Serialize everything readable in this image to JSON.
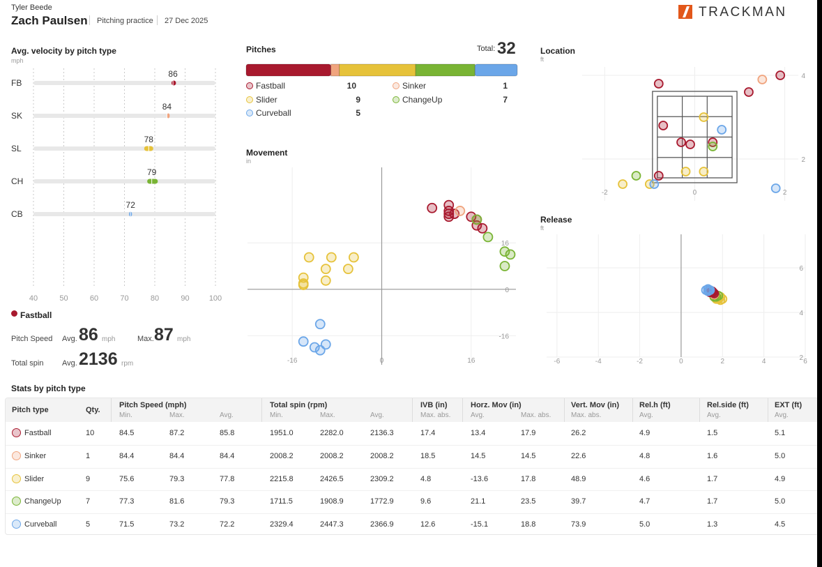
{
  "header": {
    "coach": "Tyler Beede",
    "player": "Zach Paulsen",
    "session": "Pitching practice",
    "date": "27 Dec 2025",
    "logo_text": "TRACKMAN"
  },
  "colors": {
    "fastball": "#a8192e",
    "sinker": "#f0a47e",
    "slider": "#e6c23a",
    "changeup": "#79b434",
    "curveball": "#6ba6e8"
  },
  "velocity_panel": {
    "title": "Avg. velocity by pitch type",
    "unit": "mph",
    "selected_pitch": "Fastball",
    "pitch_speed_label": "Pitch Speed",
    "avg_label": "Avg.",
    "max_label": "Max.",
    "speed_avg": "86",
    "speed_max": "87",
    "speed_unit": "mph",
    "total_spin_label": "Total spin",
    "spin_avg": "2136",
    "spin_unit": "rpm"
  },
  "pitches_panel": {
    "title": "Pitches",
    "total_label": "Total:",
    "total": "32",
    "legend": [
      {
        "name": "Fastball",
        "count": "10",
        "key": "fastball"
      },
      {
        "name": "Sinker",
        "count": "1",
        "key": "sinker"
      },
      {
        "name": "Slider",
        "count": "9",
        "key": "slider"
      },
      {
        "name": "ChangeUp",
        "count": "7",
        "key": "changeup"
      },
      {
        "name": "Curveball",
        "count": "5",
        "key": "curveball"
      }
    ]
  },
  "movement_panel": {
    "title": "Movement",
    "unit": "in"
  },
  "location_panel": {
    "title": "Location",
    "unit": "ft"
  },
  "release_panel": {
    "title": "Release",
    "unit": "ft"
  },
  "stats": {
    "title": "Stats by pitch type",
    "headers": {
      "pitch_type": "Pitch type",
      "qty": "Qty.",
      "speed": "Pitch Speed (mph)",
      "spin": "Total spin (rpm)",
      "ivb": "IVB (in)",
      "horz": "Horz. Mov (in)",
      "vert": "Vert. Mov (in)",
      "relh": "Rel.h (ft)",
      "relside": "Rel.side (ft)",
      "ext": "EXT (ft)"
    },
    "subheaders": {
      "min": "Min.",
      "max": "Max.",
      "avg": "Avg.",
      "max_abs": "Max. abs."
    },
    "rows": [
      {
        "name": "Fastball",
        "key": "fastball",
        "qty": "10",
        "s_min": "84.5",
        "s_max": "87.2",
        "s_avg": "85.8",
        "sp_min": "1951.0",
        "sp_max": "2282.0",
        "sp_avg": "2136.3",
        "ivb": "17.4",
        "h_avg": "13.4",
        "h_max": "17.9",
        "v_max": "26.2",
        "relh": "4.9",
        "relside": "1.5",
        "ext": "5.1"
      },
      {
        "name": "Sinker",
        "key": "sinker",
        "qty": "1",
        "s_min": "84.4",
        "s_max": "84.4",
        "s_avg": "84.4",
        "sp_min": "2008.2",
        "sp_max": "2008.2",
        "sp_avg": "2008.2",
        "ivb": "18.5",
        "h_avg": "14.5",
        "h_max": "14.5",
        "v_max": "22.6",
        "relh": "4.8",
        "relside": "1.6",
        "ext": "5.0"
      },
      {
        "name": "Slider",
        "key": "slider",
        "qty": "9",
        "s_min": "75.6",
        "s_max": "79.3",
        "s_avg": "77.8",
        "sp_min": "2215.8",
        "sp_max": "2426.5",
        "sp_avg": "2309.2",
        "ivb": "4.8",
        "h_avg": "-13.6",
        "h_max": "17.8",
        "v_max": "48.9",
        "relh": "4.6",
        "relside": "1.7",
        "ext": "4.9"
      },
      {
        "name": "ChangeUp",
        "key": "changeup",
        "qty": "7",
        "s_min": "77.3",
        "s_max": "81.6",
        "s_avg": "79.3",
        "sp_min": "1711.5",
        "sp_max": "1908.9",
        "sp_avg": "1772.9",
        "ivb": "9.6",
        "h_avg": "21.1",
        "h_max": "23.5",
        "v_max": "39.7",
        "relh": "4.7",
        "relside": "1.7",
        "ext": "5.0"
      },
      {
        "name": "Curveball",
        "key": "curveball",
        "qty": "5",
        "s_min": "71.5",
        "s_max": "73.2",
        "s_avg": "72.2",
        "sp_min": "2329.4",
        "sp_max": "2447.3",
        "sp_avg": "2366.9",
        "ivb": "12.6",
        "h_avg": "-15.1",
        "h_max": "18.8",
        "v_max": "73.9",
        "relh": "5.0",
        "relside": "1.3",
        "ext": "4.5"
      }
    ]
  },
  "chart_data": [
    {
      "id": "velocity",
      "type": "bar",
      "title": "Avg. velocity by pitch type",
      "ylabel": "mph",
      "categories": [
        "FB",
        "SK",
        "SL",
        "CH",
        "CB"
      ],
      "keys": [
        "fastball",
        "sinker",
        "slider",
        "changeup",
        "curveball"
      ],
      "values": [
        86,
        84,
        78,
        79,
        72
      ],
      "ranges": [
        [
          85.5,
          87
        ],
        [
          84,
          84.5
        ],
        [
          76.5,
          79.5
        ],
        [
          77.5,
          81
        ],
        [
          71.5,
          72.5
        ]
      ],
      "xlim": [
        40,
        100
      ],
      "xticks": [
        40,
        50,
        60,
        70,
        80,
        90,
        100
      ]
    },
    {
      "id": "pitches",
      "type": "bar",
      "title": "Pitches",
      "categories": [
        "Fastball",
        "Sinker",
        "Slider",
        "ChangeUp",
        "Curveball"
      ],
      "values": [
        10,
        1,
        9,
        7,
        5
      ]
    },
    {
      "id": "movement",
      "type": "scatter",
      "title": "Movement",
      "xlabel": "in",
      "ylabel": "in",
      "xlim": [
        -24,
        24
      ],
      "ylim": [
        -26,
        42
      ],
      "xticks": [
        -16,
        0,
        16
      ],
      "yticks": [
        -16,
        0,
        16
      ],
      "series": [
        {
          "name": "Fastball",
          "key": "fastball",
          "points": [
            [
              12,
              29
            ],
            [
              12,
              27
            ],
            [
              9,
              28
            ],
            [
              12,
              26
            ],
            [
              13,
              26
            ],
            [
              12,
              25
            ],
            [
              16,
              25
            ],
            [
              17,
              24
            ],
            [
              17,
              22
            ],
            [
              18,
              21
            ]
          ]
        },
        {
          "name": "Sinker",
          "key": "sinker",
          "points": [
            [
              14,
              27
            ]
          ]
        },
        {
          "name": "Slider",
          "key": "slider",
          "points": [
            [
              -13,
              11
            ],
            [
              -9,
              11
            ],
            [
              -5,
              11
            ],
            [
              -10,
              7
            ],
            [
              -6,
              7
            ],
            [
              -14,
              4
            ],
            [
              -14,
              2
            ],
            [
              -14,
              1.5
            ],
            [
              -10,
              3
            ]
          ]
        },
        {
          "name": "ChangeUp",
          "key": "changeup",
          "points": [
            [
              17,
              24
            ],
            [
              19,
              18
            ],
            [
              22,
              13
            ],
            [
              23,
              12
            ],
            [
              22,
              8
            ]
          ]
        },
        {
          "name": "Curveball",
          "key": "curveball",
          "points": [
            [
              -11,
              -12
            ],
            [
              -14,
              -18
            ],
            [
              -10,
              -19
            ],
            [
              -11,
              -21
            ],
            [
              -12,
              -20
            ]
          ]
        }
      ]
    },
    {
      "id": "location",
      "type": "scatter",
      "title": "Location",
      "xlabel": "ft",
      "ylabel": "ft",
      "xlim": [
        -2.5,
        2.3
      ],
      "ylim": [
        1,
        4.2
      ],
      "xticks": [
        -2,
        0,
        2
      ],
      "yticks": [
        2,
        4
      ],
      "series": [
        {
          "name": "Fastball",
          "key": "fastball",
          "points": [
            [
              -0.8,
              3.8
            ],
            [
              -0.7,
              2.8
            ],
            [
              -0.3,
              2.4
            ],
            [
              -0.1,
              2.35
            ],
            [
              0.4,
              2.4
            ],
            [
              1.2,
              3.6
            ],
            [
              1.9,
              4.0
            ],
            [
              -0.8,
              1.6
            ]
          ]
        },
        {
          "name": "Sinker",
          "key": "sinker",
          "points": [
            [
              1.5,
              3.9
            ]
          ]
        },
        {
          "name": "Slider",
          "key": "slider",
          "points": [
            [
              0.2,
              3.0
            ],
            [
              -0.2,
              1.7
            ],
            [
              0.2,
              1.7
            ],
            [
              -1.6,
              1.4
            ],
            [
              -1.0,
              1.4
            ]
          ]
        },
        {
          "name": "ChangeUp",
          "key": "changeup",
          "points": [
            [
              0.4,
              2.3
            ],
            [
              -1.3,
              1.6
            ]
          ]
        },
        {
          "name": "Curveball",
          "key": "curveball",
          "points": [
            [
              0.6,
              2.7
            ],
            [
              -0.9,
              1.4
            ],
            [
              1.8,
              1.3
            ]
          ]
        }
      ]
    },
    {
      "id": "release",
      "type": "scatter",
      "title": "Release",
      "xlabel": "ft",
      "ylabel": "ft",
      "xlim": [
        -6.5,
        6
      ],
      "ylim": [
        2,
        7.5
      ],
      "xticks": [
        -6,
        -4,
        -2,
        0,
        2,
        4,
        6
      ],
      "yticks": [
        2,
        4,
        6
      ],
      "series": [
        {
          "name": "Slider",
          "key": "slider",
          "points": [
            [
              1.7,
              4.6
            ],
            [
              1.8,
              4.6
            ],
            [
              1.9,
              4.55
            ],
            [
              2.0,
              4.6
            ],
            [
              1.6,
              4.7
            ],
            [
              1.9,
              4.7
            ],
            [
              1.7,
              4.65
            ],
            [
              1.8,
              4.6
            ],
            [
              1.75,
              4.65
            ]
          ]
        },
        {
          "name": "ChangeUp",
          "key": "changeup",
          "points": [
            [
              1.6,
              4.7
            ],
            [
              1.7,
              4.7
            ],
            [
              1.8,
              4.75
            ]
          ]
        },
        {
          "name": "Sinker",
          "key": "sinker",
          "points": [
            [
              1.6,
              4.8
            ]
          ]
        },
        {
          "name": "Fastball",
          "key": "fastball",
          "points": [
            [
              1.4,
              4.9
            ],
            [
              1.5,
              4.9
            ],
            [
              1.6,
              4.85
            ],
            [
              1.5,
              4.95
            ],
            [
              1.45,
              4.9
            ],
            [
              1.55,
              4.9
            ]
          ]
        },
        {
          "name": "Curveball",
          "key": "curveball",
          "points": [
            [
              1.2,
              5.0
            ],
            [
              1.3,
              5.05
            ],
            [
              1.4,
              5.0
            ],
            [
              1.3,
              4.95
            ],
            [
              1.35,
              5.0
            ]
          ]
        }
      ]
    }
  ]
}
